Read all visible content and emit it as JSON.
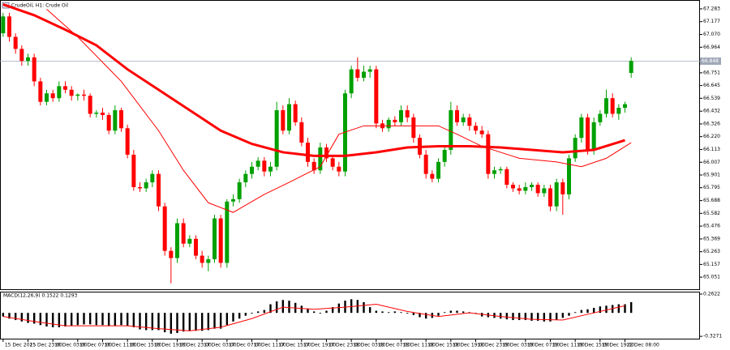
{
  "chart_data": {
    "type": "candlestick",
    "title": "CrudeOil, H1: Crude Oil",
    "categories": [
      "15 Dec 2025",
      null,
      null,
      null,
      "15 Dec 23:00",
      null,
      null,
      null,
      "16 Dec 03:00",
      null,
      null,
      null,
      "16 Dec 07:00",
      null,
      null,
      null,
      "16 Dec 11:00",
      null,
      null,
      null,
      "16 Dec 15:00",
      null,
      null,
      null,
      "16 Dec 19:00",
      null,
      null,
      null,
      "16 Dec 23:00",
      null,
      null,
      null,
      "17 Dec 03:00",
      null,
      null,
      null,
      "17 Dec 07:00",
      null,
      null,
      null,
      "17 Dec 11:00",
      null,
      null,
      null,
      "17 Dec 15:00",
      null,
      null,
      null,
      "17 Dec 19:00",
      null,
      null,
      null,
      "17 Dec 23:00",
      null,
      null,
      null,
      "18 Dec 03:00",
      null,
      null,
      null,
      "18 Dec 07:00",
      null,
      null,
      null,
      "18 Dec 11:00",
      null,
      null,
      null,
      "18 Dec 15:00",
      null,
      null,
      null,
      "18 Dec 19:00",
      null,
      null,
      null,
      "18 Dec 23:00",
      null,
      null,
      null,
      "19 Dec 03:00",
      null,
      null,
      null,
      "19 Dec 07:00",
      null,
      null,
      null,
      "19 Dec 11:00",
      null,
      null,
      null,
      "19 Dec 15:00",
      null,
      null,
      null,
      "19 Dec 19:00",
      null,
      null,
      null,
      "22 Dec 08:00",
      null
    ],
    "series": [
      {
        "name": "CrudeOil",
        "type": "candlestick",
        "up_color": "#00a000",
        "down_color": "#ff0000",
        "values": [
          [
            67.08,
            67.25,
            67.05,
            67.22
          ],
          [
            67.22,
            67.25,
            67.01,
            67.05
          ],
          [
            67.05,
            67.08,
            66.91,
            66.95
          ],
          [
            66.95,
            66.98,
            66.81,
            66.85
          ],
          [
            66.85,
            66.91,
            66.81,
            66.88
          ],
          [
            66.88,
            66.91,
            66.64,
            66.68
          ],
          [
            66.68,
            66.71,
            66.48,
            66.51
          ],
          [
            66.51,
            66.61,
            66.48,
            66.58
          ],
          [
            66.58,
            66.61,
            66.51,
            66.54
          ],
          [
            66.54,
            66.68,
            66.51,
            66.64
          ],
          [
            66.64,
            66.68,
            66.58,
            66.61
          ],
          [
            66.61,
            66.64,
            66.52,
            66.56
          ],
          [
            66.56,
            66.58,
            66.52,
            66.57
          ],
          [
            66.57,
            66.61,
            66.52,
            66.56
          ],
          [
            66.56,
            66.58,
            66.38,
            66.41
          ],
          [
            66.41,
            66.44,
            66.38,
            66.42
          ],
          [
            66.42,
            66.46,
            66.36,
            66.4
          ],
          [
            66.4,
            66.42,
            66.24,
            66.27
          ],
          [
            66.27,
            66.48,
            66.24,
            66.44
          ],
          [
            66.44,
            66.46,
            66.26,
            66.29
          ],
          [
            66.29,
            66.32,
            66.04,
            66.07
          ],
          [
            66.07,
            66.11,
            65.77,
            65.8
          ],
          [
            65.8,
            65.84,
            65.76,
            65.79
          ],
          [
            65.79,
            65.87,
            65.76,
            65.84
          ],
          [
            65.84,
            65.94,
            65.8,
            65.91
          ],
          [
            65.91,
            65.94,
            65.6,
            65.64
          ],
          [
            65.64,
            65.67,
            65.23,
            65.27
          ],
          [
            65.27,
            65.3,
            65.0,
            65.21
          ],
          [
            65.21,
            65.54,
            65.17,
            65.5
          ],
          [
            65.5,
            65.54,
            65.3,
            65.33
          ],
          [
            65.33,
            65.4,
            65.3,
            65.37
          ],
          [
            65.37,
            65.4,
            65.2,
            65.23
          ],
          [
            65.23,
            65.27,
            65.13,
            65.17
          ],
          [
            65.17,
            65.23,
            65.1,
            65.2
          ],
          [
            65.2,
            65.57,
            65.17,
            65.54
          ],
          [
            65.54,
            65.57,
            65.13,
            65.17
          ],
          [
            65.17,
            65.7,
            65.13,
            65.68
          ],
          [
            65.68,
            65.74,
            65.64,
            65.7
          ],
          [
            65.7,
            65.87,
            65.67,
            65.84
          ],
          [
            65.84,
            65.94,
            65.8,
            65.91
          ],
          [
            65.91,
            66.01,
            65.87,
            65.97
          ],
          [
            65.97,
            66.05,
            65.94,
            66.02
          ],
          [
            66.02,
            66.05,
            65.89,
            65.93
          ],
          [
            65.93,
            66.01,
            65.89,
            65.97
          ],
          [
            65.97,
            66.51,
            65.94,
            66.44
          ],
          [
            66.44,
            66.48,
            66.24,
            66.27
          ],
          [
            66.27,
            66.54,
            66.24,
            66.49
          ],
          [
            66.49,
            66.52,
            66.31,
            66.34
          ],
          [
            66.34,
            66.38,
            66.14,
            66.17
          ],
          [
            66.17,
            66.21,
            65.97,
            66.01
          ],
          [
            66.01,
            66.04,
            65.91,
            65.94
          ],
          [
            65.94,
            66.17,
            65.91,
            66.13
          ],
          [
            66.13,
            66.16,
            66.01,
            66.04
          ],
          [
            66.04,
            66.07,
            65.94,
            65.97
          ],
          [
            65.97,
            66.01,
            65.89,
            65.93
          ],
          [
            65.93,
            66.61,
            65.89,
            66.58
          ],
          [
            66.58,
            66.81,
            66.54,
            66.78
          ],
          [
            66.78,
            66.88,
            66.68,
            66.71
          ],
          [
            66.71,
            66.81,
            66.68,
            66.76
          ],
          [
            66.76,
            66.81,
            66.71,
            66.78
          ],
          [
            66.78,
            66.81,
            66.29,
            66.33
          ],
          [
            66.33,
            66.36,
            66.26,
            66.29
          ],
          [
            66.29,
            66.38,
            66.26,
            66.36
          ],
          [
            66.36,
            66.39,
            66.31,
            66.34
          ],
          [
            66.34,
            66.48,
            66.31,
            66.44
          ],
          [
            66.44,
            66.48,
            66.34,
            66.38
          ],
          [
            66.38,
            66.41,
            66.17,
            66.21
          ],
          [
            66.21,
            66.24,
            66.04,
            66.07
          ],
          [
            66.07,
            66.11,
            65.87,
            65.91
          ],
          [
            65.91,
            65.94,
            65.84,
            65.87
          ],
          [
            65.87,
            66.04,
            65.84,
            66.01
          ],
          [
            66.01,
            66.14,
            65.97,
            66.11
          ],
          [
            66.11,
            66.51,
            66.07,
            66.44
          ],
          [
            66.44,
            66.48,
            66.31,
            66.34
          ],
          [
            66.34,
            66.41,
            66.31,
            66.38
          ],
          [
            66.38,
            66.41,
            66.27,
            66.31
          ],
          [
            66.31,
            66.34,
            66.24,
            66.27
          ],
          [
            66.27,
            66.31,
            66.21,
            66.24
          ],
          [
            66.24,
            66.27,
            65.87,
            65.91
          ],
          [
            65.91,
            65.97,
            65.87,
            65.94
          ],
          [
            65.94,
            65.97,
            65.91,
            65.95
          ],
          [
            65.95,
            65.97,
            65.79,
            65.82
          ],
          [
            65.82,
            65.84,
            65.76,
            65.79
          ],
          [
            65.79,
            65.82,
            65.74,
            65.77
          ],
          [
            65.77,
            65.84,
            65.74,
            65.8
          ],
          [
            65.8,
            65.84,
            65.77,
            65.82
          ],
          [
            65.82,
            65.84,
            65.72,
            65.75
          ],
          [
            65.75,
            65.82,
            65.72,
            65.79
          ],
          [
            65.79,
            65.82,
            65.6,
            65.64
          ],
          [
            65.64,
            65.87,
            65.6,
            65.84
          ],
          [
            65.84,
            65.87,
            65.57,
            65.74
          ],
          [
            65.74,
            66.07,
            65.7,
            66.04
          ],
          [
            66.04,
            66.24,
            66.01,
            66.21
          ],
          [
            66.21,
            66.41,
            66.17,
            66.38
          ],
          [
            66.38,
            66.41,
            66.07,
            66.11
          ],
          [
            66.11,
            66.38,
            66.07,
            66.34
          ],
          [
            66.34,
            66.44,
            66.31,
            66.41
          ],
          [
            66.41,
            66.61,
            66.38,
            66.54
          ],
          [
            66.54,
            66.58,
            66.38,
            66.41
          ],
          [
            66.41,
            66.49,
            66.36,
            66.46
          ],
          [
            66.46,
            66.51,
            66.42,
            66.49
          ],
          [
            66.75,
            66.88,
            66.71,
            66.85
          ]
        ]
      },
      {
        "type": "line",
        "color": "#ff0000",
        "width": 1,
        "x": [
          7,
          12,
          19,
          25,
          29,
          33,
          37,
          42,
          46,
          51,
          54,
          58,
          64,
          70,
          73,
          77,
          83,
          89,
          93,
          97,
          101
        ],
        "values": [
          67.28,
          67.05,
          66.68,
          66.27,
          65.94,
          65.67,
          65.59,
          65.74,
          65.84,
          65.97,
          66.24,
          66.31,
          66.31,
          66.31,
          66.24,
          66.14,
          66.04,
          66.01,
          65.97,
          66.04,
          66.17
        ]
      },
      {
        "type": "line",
        "color": "#ff0000",
        "width": 3,
        "x": [
          0,
          5,
          10,
          15,
          20,
          25,
          30,
          35,
          40,
          45,
          50,
          55,
          60,
          65,
          70,
          75,
          80,
          85,
          90,
          95,
          100
        ],
        "values": [
          67.32,
          67.23,
          67.11,
          66.98,
          66.78,
          66.61,
          66.44,
          66.27,
          66.16,
          66.09,
          66.06,
          66.06,
          66.09,
          66.13,
          66.14,
          66.14,
          66.13,
          66.11,
          66.09,
          66.11,
          66.19
        ]
      }
    ],
    "ylim": [
      64.944,
      67.35
    ],
    "yticks": [
      67.283,
      67.177,
      {
        "value": 67.07,
        "label": "67.070"
      },
      66.964,
      66.858,
      66.751,
      66.645,
      66.539,
      66.432,
      66.326,
      {
        "value": 66.22,
        "label": "66.220"
      },
      66.113,
      66.007,
      65.901,
      65.795,
      65.688,
      65.582,
      65.476,
      65.369,
      65.263,
      65.157,
      65.051
    ],
    "last_price": 66.848,
    "indicator": {
      "type": "macd",
      "title": "MACD(12,26,9) 0.1522 0.1293",
      "ylim": [
        -0.3594,
        0.2844
      ],
      "yticks": [
        0.2622,
        -0.3271
      ],
      "histogram": {
        "color": "#000000",
        "values": [
          -0.05,
          -0.08,
          -0.1,
          -0.12,
          -0.14,
          -0.15,
          -0.17,
          -0.19,
          -0.2,
          -0.2,
          -0.19,
          -0.18,
          -0.17,
          -0.16,
          -0.16,
          -0.17,
          -0.17,
          -0.18,
          -0.18,
          -0.17,
          -0.18,
          -0.2,
          -0.23,
          -0.24,
          -0.24,
          -0.24,
          -0.27,
          -0.29,
          -0.28,
          -0.26,
          -0.25,
          -0.25,
          -0.25,
          -0.24,
          -0.22,
          -0.22,
          -0.17,
          -0.12,
          -0.08,
          -0.04,
          -0.01,
          0.02,
          0.04,
          0.12,
          0.16,
          0.18,
          0.17,
          0.14,
          0.1,
          0.06,
          0.02,
          -0.01,
          0.03,
          0.08,
          0.13,
          0.17,
          0.19,
          0.18,
          0.15,
          0.08,
          0.03,
          0.02,
          0.01,
          0.02,
          0.01,
          -0.01,
          -0.03,
          -0.06,
          -0.08,
          -0.07,
          -0.04,
          0.01,
          0.03,
          0.03,
          0.02,
          0.01,
          -0.01,
          -0.05,
          -0.06,
          -0.07,
          -0.08,
          -0.09,
          -0.1,
          -0.1,
          -0.1,
          -0.11,
          -0.11,
          -0.12,
          -0.12,
          -0.1,
          -0.07,
          -0.04,
          0.01,
          0.04,
          0.05,
          0.07,
          0.09,
          0.1,
          0.11,
          0.12,
          0.12,
          0.15
        ]
      },
      "signal": {
        "color": "#ff0000",
        "x": [
          0,
          5,
          10,
          15,
          20,
          25,
          30,
          35,
          40,
          45,
          50,
          55,
          60,
          65,
          70,
          75,
          80,
          85,
          90,
          95,
          100
        ],
        "values": [
          -0.05,
          -0.12,
          -0.18,
          -0.18,
          -0.18,
          -0.22,
          -0.25,
          -0.2,
          -0.08,
          0.08,
          0.05,
          0.08,
          0.12,
          0.02,
          -0.05,
          0.0,
          -0.05,
          -0.09,
          -0.1,
          0.0,
          0.1
        ]
      }
    }
  }
}
